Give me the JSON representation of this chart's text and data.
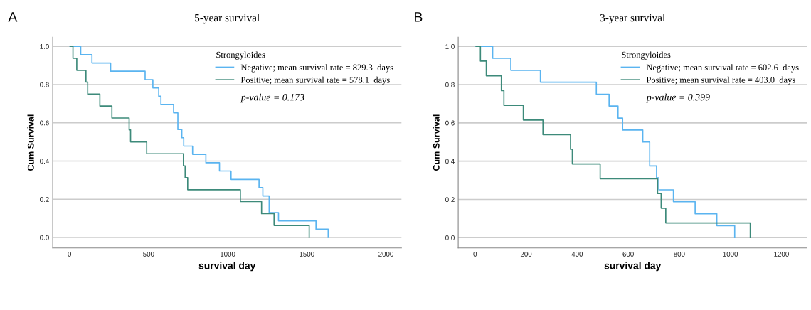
{
  "chart_data": [
    {
      "type": "step",
      "title": "5-year survival",
      "xlabel": "survival day",
      "ylabel": "Cum Survival",
      "legend_title": "Strongyloides",
      "annotations": [
        "A",
        "p-value = 0.173"
      ],
      "xlim": [
        -106,
        2098
      ],
      "xticks": [
        0,
        500,
        1000,
        1500,
        2000
      ],
      "ylim": [
        -0.055,
        1.048
      ],
      "yticks": [
        {
          "value": 0,
          "label": "0.0"
        },
        {
          "value": 0.2,
          "label": "0.2"
        },
        {
          "value": 0.4,
          "label": "0.4"
        },
        {
          "value": 0.6,
          "label": "0.6"
        },
        {
          "value": 0.8,
          "label": "0.8"
        },
        {
          "value": 1,
          "label": "1.0"
        }
      ],
      "grid": "y",
      "legend": "top right",
      "marker": "none",
      "line_style": "solid",
      "series": [
        {
          "name": "Negative; mean survival rate = 829.3  days",
          "color": "#5ab4f0",
          "x": [
            4,
            71,
            142,
            260,
            478,
            527,
            564,
            578,
            658,
            685,
            710,
            722,
            778,
            862,
            948,
            1021,
            1198,
            1222,
            1262,
            1321,
            1558,
            1635
          ],
          "values": [
            1.0,
            0.957,
            0.913,
            0.87,
            0.826,
            0.783,
            0.739,
            0.696,
            0.652,
            0.565,
            0.522,
            0.478,
            0.435,
            0.391,
            0.348,
            0.304,
            0.261,
            0.217,
            0.13,
            0.087,
            0.043,
            0.0
          ]
        },
        {
          "name": "Positive; mean survival rate = 578.1  days",
          "color": "#3d8a7a",
          "x": [
            4,
            22,
            46,
            104,
            115,
            192,
            268,
            377,
            386,
            488,
            720,
            731,
            747,
            1080,
            1214,
            1293,
            1515
          ],
          "values": [
            1.0,
            0.938,
            0.875,
            0.813,
            0.75,
            0.688,
            0.625,
            0.563,
            0.5,
            0.438,
            0.375,
            0.313,
            0.25,
            0.188,
            0.125,
            0.063,
            0.0
          ]
        }
      ]
    },
    {
      "type": "step",
      "title": "3-year survival",
      "xlabel": "survival day",
      "ylabel": "Cum Survival",
      "legend_title": "Strongyloides",
      "annotations": [
        "B",
        "p-value = 0.399"
      ],
      "xlim": [
        -66,
        1300
      ],
      "xticks": [
        0,
        200,
        400,
        600,
        800,
        1000,
        1200
      ],
      "ylim": [
        -0.054,
        1.048
      ],
      "yticks": [
        {
          "value": 0,
          "label": "0.0"
        },
        {
          "value": 0.2,
          "label": "0.2"
        },
        {
          "value": 0.4,
          "label": "0.4"
        },
        {
          "value": 0.6,
          "label": "0.6"
        },
        {
          "value": 0.8,
          "label": "0.8"
        },
        {
          "value": 1,
          "label": "1.0"
        }
      ],
      "grid": "y",
      "legend": "top right",
      "marker": "none",
      "line_style": "solid",
      "series": [
        {
          "name": "Negative; mean survival rate = 602.6  days",
          "color": "#5ab4f0",
          "x": [
            4,
            69,
            140,
            256,
            475,
            525,
            560,
            578,
            657,
            684,
            711,
            720,
            777,
            862,
            947,
            1017
          ],
          "values": [
            1.0,
            0.938,
            0.875,
            0.813,
            0.75,
            0.688,
            0.625,
            0.563,
            0.5,
            0.375,
            0.313,
            0.25,
            0.188,
            0.125,
            0.063,
            0.0
          ]
        },
        {
          "name": "Positive; mean survival rate = 403.0  days",
          "color": "#3d8a7a",
          "x": [
            4,
            21,
            44,
            103,
            113,
            189,
            266,
            374,
            381,
            490,
            715,
            729,
            747,
            1078
          ],
          "values": [
            1.0,
            0.923,
            0.846,
            0.769,
            0.692,
            0.615,
            0.538,
            0.462,
            0.385,
            0.308,
            0.231,
            0.154,
            0.077,
            0.0
          ]
        }
      ]
    }
  ]
}
